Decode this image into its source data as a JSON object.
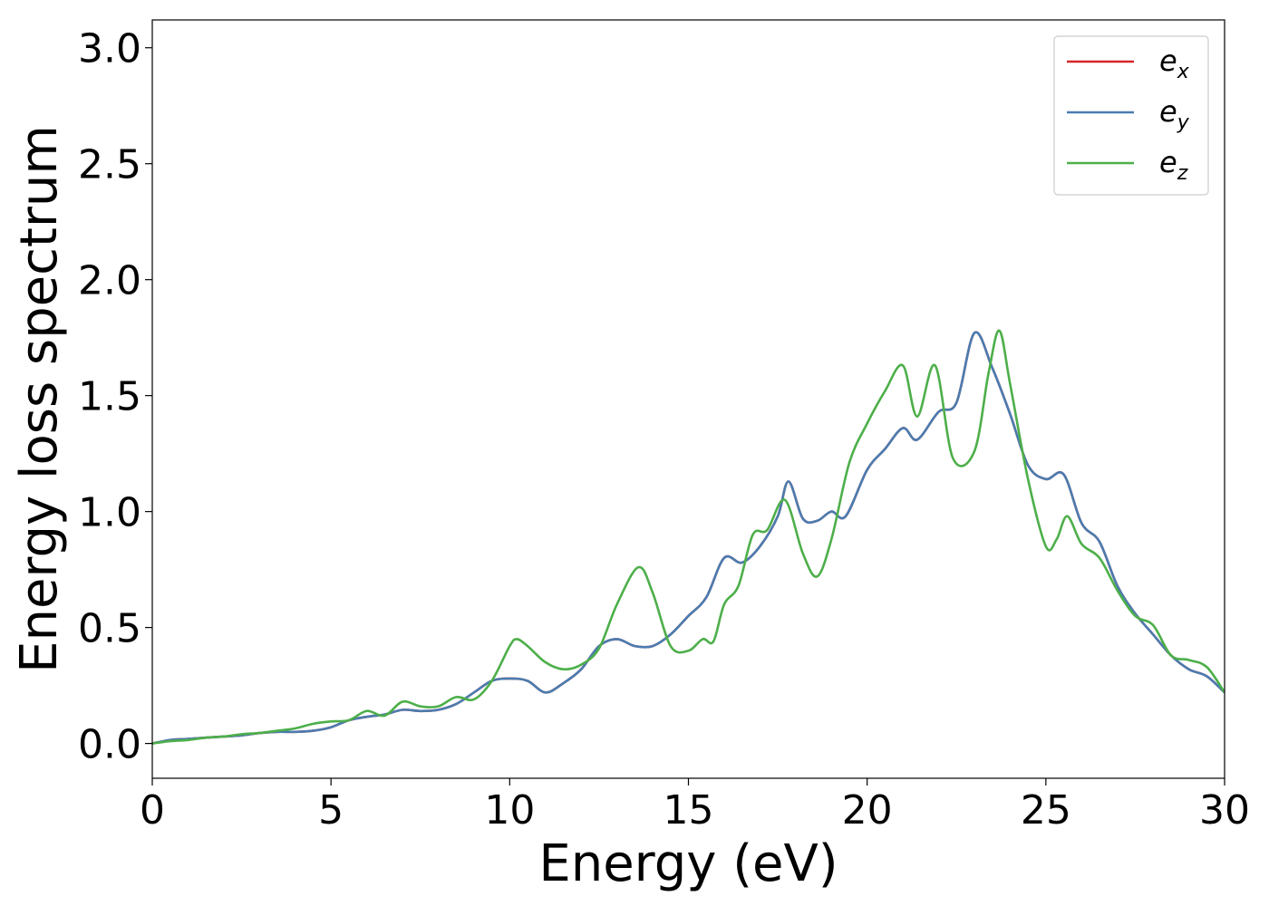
{
  "chart_data": {
    "type": "line",
    "xlabel": "Energy (eV)",
    "ylabel": "Energy loss spectrum",
    "xlim": [
      0,
      30
    ],
    "ylim": [
      -0.15,
      3.12
    ],
    "xticks": [
      0,
      5,
      10,
      15,
      20,
      25,
      30
    ],
    "yticks": [
      0.0,
      0.5,
      1.0,
      1.5,
      2.0,
      2.5,
      3.0
    ],
    "xtick_labels": [
      "0",
      "5",
      "10",
      "15",
      "20",
      "25",
      "30"
    ],
    "ytick_labels": [
      "0.0",
      "0.5",
      "1.0",
      "1.5",
      "2.0",
      "2.5",
      "3.0"
    ],
    "grid": false,
    "legend_position": "top-right",
    "series": [
      {
        "name": "e_x",
        "label_base": "e",
        "label_sub": "x",
        "color": "#d62728",
        "x": [
          0,
          0.5,
          1,
          1.5,
          2,
          2.5,
          3,
          3.5,
          4,
          4.5,
          5,
          5.5,
          6,
          6.5,
          7,
          7.5,
          8,
          8.5,
          9,
          9.5,
          10,
          10.5,
          11,
          11.5,
          12,
          12.5,
          13,
          13.5,
          14,
          14.5,
          15,
          15.5,
          16,
          16.5,
          17,
          17.5,
          17.8,
          18.2,
          18.6,
          19,
          19.4,
          20,
          20.5,
          21,
          21.4,
          22,
          22.5,
          23,
          23.5,
          24,
          24.5,
          25,
          25.5,
          26,
          26.5,
          27,
          27.5,
          28,
          28.5,
          29,
          29.5,
          30
        ],
        "y": [
          0.0,
          0.015,
          0.02,
          0.025,
          0.03,
          0.035,
          0.045,
          0.05,
          0.05,
          0.055,
          0.07,
          0.1,
          0.115,
          0.125,
          0.145,
          0.14,
          0.145,
          0.17,
          0.22,
          0.27,
          0.28,
          0.27,
          0.22,
          0.26,
          0.32,
          0.42,
          0.45,
          0.42,
          0.42,
          0.47,
          0.55,
          0.63,
          0.8,
          0.78,
          0.85,
          0.98,
          1.13,
          0.97,
          0.96,
          1.0,
          0.98,
          1.18,
          1.27,
          1.36,
          1.31,
          1.43,
          1.47,
          1.77,
          1.62,
          1.42,
          1.2,
          1.14,
          1.16,
          0.95,
          0.87,
          0.68,
          0.56,
          0.47,
          0.38,
          0.32,
          0.29,
          0.22
        ]
      },
      {
        "name": "e_y",
        "label_base": "e",
        "label_sub": "y",
        "color": "#4a7cb0",
        "x": [
          0,
          0.5,
          1,
          1.5,
          2,
          2.5,
          3,
          3.5,
          4,
          4.5,
          5,
          5.5,
          6,
          6.5,
          7,
          7.5,
          8,
          8.5,
          9,
          9.5,
          10,
          10.5,
          11,
          11.5,
          12,
          12.5,
          13,
          13.5,
          14,
          14.5,
          15,
          15.5,
          16,
          16.5,
          17,
          17.5,
          17.8,
          18.2,
          18.6,
          19,
          19.4,
          20,
          20.5,
          21,
          21.4,
          22,
          22.5,
          23,
          23.5,
          24,
          24.5,
          25,
          25.5,
          26,
          26.5,
          27,
          27.5,
          28,
          28.5,
          29,
          29.5,
          30
        ],
        "y": [
          0.0,
          0.015,
          0.02,
          0.025,
          0.03,
          0.035,
          0.045,
          0.05,
          0.05,
          0.055,
          0.07,
          0.1,
          0.115,
          0.125,
          0.145,
          0.14,
          0.145,
          0.17,
          0.22,
          0.27,
          0.28,
          0.27,
          0.22,
          0.26,
          0.32,
          0.42,
          0.45,
          0.42,
          0.42,
          0.47,
          0.55,
          0.63,
          0.8,
          0.78,
          0.85,
          0.98,
          1.13,
          0.97,
          0.96,
          1.0,
          0.98,
          1.18,
          1.27,
          1.36,
          1.31,
          1.43,
          1.47,
          1.77,
          1.62,
          1.42,
          1.2,
          1.14,
          1.16,
          0.95,
          0.87,
          0.68,
          0.56,
          0.47,
          0.38,
          0.32,
          0.29,
          0.22
        ]
      },
      {
        "name": "e_z",
        "label_base": "e",
        "label_sub": "z",
        "color": "#4daf4a",
        "x": [
          0,
          0.5,
          1,
          1.5,
          2,
          2.5,
          3,
          3.5,
          4,
          4.5,
          5,
          5.5,
          6,
          6.5,
          7,
          7.5,
          8,
          8.5,
          9,
          9.5,
          10,
          10.2,
          10.5,
          11,
          11.5,
          12,
          12.5,
          13,
          13.6,
          14,
          14.5,
          15,
          15.4,
          15.7,
          16,
          16.4,
          16.8,
          17.2,
          17.7,
          18.2,
          18.6,
          19,
          19.5,
          20,
          20.5,
          21,
          21.4,
          21.9,
          22.4,
          23,
          23.4,
          23.7,
          24,
          24.5,
          25,
          25.3,
          25.6,
          26,
          26.5,
          27,
          27.5,
          28,
          28.5,
          29,
          29.5,
          30
        ],
        "y": [
          0.0,
          0.01,
          0.015,
          0.025,
          0.03,
          0.04,
          0.045,
          0.055,
          0.065,
          0.085,
          0.095,
          0.1,
          0.14,
          0.12,
          0.18,
          0.16,
          0.16,
          0.2,
          0.19,
          0.27,
          0.42,
          0.45,
          0.42,
          0.35,
          0.32,
          0.34,
          0.41,
          0.6,
          0.76,
          0.65,
          0.42,
          0.4,
          0.45,
          0.44,
          0.6,
          0.68,
          0.9,
          0.92,
          1.05,
          0.82,
          0.72,
          0.88,
          1.21,
          1.38,
          1.52,
          1.63,
          1.41,
          1.63,
          1.23,
          1.26,
          1.6,
          1.78,
          1.55,
          1.14,
          0.85,
          0.88,
          0.98,
          0.86,
          0.8,
          0.66,
          0.55,
          0.51,
          0.38,
          0.36,
          0.33,
          0.22
        ]
      }
    ]
  }
}
